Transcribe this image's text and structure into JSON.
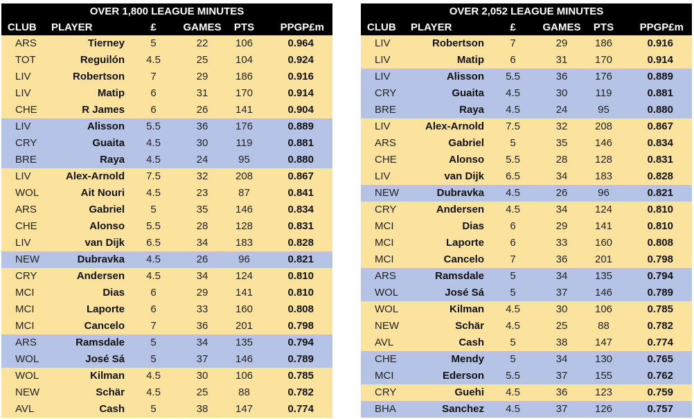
{
  "headers": [
    "CLUB",
    "PLAYER",
    "£",
    "GAMES",
    "PTS",
    "PPGP£m"
  ],
  "colors": {
    "gold_row": "#fbe29d",
    "blue_row": "#b4c3e6",
    "header_bg": "#000000"
  },
  "tables": [
    {
      "title": "OVER 1,800 LEAGUE MINUTES",
      "rows": [
        {
          "club": "ARS",
          "player": "Tierney",
          "price": "5",
          "games": "22",
          "pts": "106",
          "ppg": "0.964",
          "shade": "gold"
        },
        {
          "club": "TOT",
          "player": "Reguilón",
          "price": "4.5",
          "games": "25",
          "pts": "104",
          "ppg": "0.924",
          "shade": "gold"
        },
        {
          "club": "LIV",
          "player": "Robertson",
          "price": "7",
          "games": "29",
          "pts": "186",
          "ppg": "0.916",
          "shade": "gold"
        },
        {
          "club": "LIV",
          "player": "Matip",
          "price": "6",
          "games": "31",
          "pts": "170",
          "ppg": "0.914",
          "shade": "gold"
        },
        {
          "club": "CHE",
          "player": "R James",
          "price": "6",
          "games": "26",
          "pts": "141",
          "ppg": "0.904",
          "shade": "gold"
        },
        {
          "club": "LIV",
          "player": "Alisson",
          "price": "5.5",
          "games": "36",
          "pts": "176",
          "ppg": "0.889",
          "shade": "blue"
        },
        {
          "club": "CRY",
          "player": "Guaita",
          "price": "4.5",
          "games": "30",
          "pts": "119",
          "ppg": "0.881",
          "shade": "blue"
        },
        {
          "club": "BRE",
          "player": "Raya",
          "price": "4.5",
          "games": "24",
          "pts": "95",
          "ppg": "0.880",
          "shade": "blue"
        },
        {
          "club": "LIV",
          "player": "Alex-Arnold",
          "price": "7.5",
          "games": "32",
          "pts": "208",
          "ppg": "0.867",
          "shade": "gold"
        },
        {
          "club": "WOL",
          "player": "Ait Nouri",
          "price": "4.5",
          "games": "23",
          "pts": "87",
          "ppg": "0.841",
          "shade": "gold"
        },
        {
          "club": "ARS",
          "player": "Gabriel",
          "price": "5",
          "games": "35",
          "pts": "146",
          "ppg": "0.834",
          "shade": "gold"
        },
        {
          "club": "CHE",
          "player": "Alonso",
          "price": "5.5",
          "games": "28",
          "pts": "128",
          "ppg": "0.831",
          "shade": "gold"
        },
        {
          "club": "LIV",
          "player": "van Dijk",
          "price": "6.5",
          "games": "34",
          "pts": "183",
          "ppg": "0.828",
          "shade": "gold"
        },
        {
          "club": "NEW",
          "player": "Dubravka",
          "price": "4.5",
          "games": "26",
          "pts": "96",
          "ppg": "0.821",
          "shade": "blue"
        },
        {
          "club": "CRY",
          "player": "Andersen",
          "price": "4.5",
          "games": "34",
          "pts": "124",
          "ppg": "0.810",
          "shade": "gold"
        },
        {
          "club": "MCI",
          "player": "Dias",
          "price": "6",
          "games": "29",
          "pts": "141",
          "ppg": "0.810",
          "shade": "gold"
        },
        {
          "club": "MCI",
          "player": "Laporte",
          "price": "6",
          "games": "33",
          "pts": "160",
          "ppg": "0.808",
          "shade": "gold"
        },
        {
          "club": "MCI",
          "player": "Cancelo",
          "price": "7",
          "games": "36",
          "pts": "201",
          "ppg": "0.798",
          "shade": "gold"
        },
        {
          "club": "ARS",
          "player": "Ramsdale",
          "price": "5",
          "games": "34",
          "pts": "135",
          "ppg": "0.794",
          "shade": "blue"
        },
        {
          "club": "WOL",
          "player": "José Sá",
          "price": "5",
          "games": "37",
          "pts": "146",
          "ppg": "0.789",
          "shade": "blue"
        },
        {
          "club": "WOL",
          "player": "Kilman",
          "price": "4.5",
          "games": "30",
          "pts": "106",
          "ppg": "0.785",
          "shade": "gold"
        },
        {
          "club": "NEW",
          "player": "Schär",
          "price": "4.5",
          "games": "25",
          "pts": "88",
          "ppg": "0.782",
          "shade": "gold"
        },
        {
          "club": "AVL",
          "player": "Cash",
          "price": "5",
          "games": "38",
          "pts": "147",
          "ppg": "0.774",
          "shade": "gold"
        }
      ]
    },
    {
      "title": "OVER 2,052 LEAGUE MINUTES",
      "rows": [
        {
          "club": "LIV",
          "player": "Robertson",
          "price": "7",
          "games": "29",
          "pts": "186",
          "ppg": "0.916",
          "shade": "gold"
        },
        {
          "club": "LIV",
          "player": "Matip",
          "price": "6",
          "games": "31",
          "pts": "170",
          "ppg": "0.914",
          "shade": "gold"
        },
        {
          "club": "LIV",
          "player": "Alisson",
          "price": "5.5",
          "games": "36",
          "pts": "176",
          "ppg": "0.889",
          "shade": "blue"
        },
        {
          "club": "CRY",
          "player": "Guaita",
          "price": "4.5",
          "games": "30",
          "pts": "119",
          "ppg": "0.881",
          "shade": "blue"
        },
        {
          "club": "BRE",
          "player": "Raya",
          "price": "4.5",
          "games": "24",
          "pts": "95",
          "ppg": "0.880",
          "shade": "blue"
        },
        {
          "club": "LIV",
          "player": "Alex-Arnold",
          "price": "7.5",
          "games": "32",
          "pts": "208",
          "ppg": "0.867",
          "shade": "gold"
        },
        {
          "club": "ARS",
          "player": "Gabriel",
          "price": "5",
          "games": "35",
          "pts": "146",
          "ppg": "0.834",
          "shade": "gold"
        },
        {
          "club": "CHE",
          "player": "Alonso",
          "price": "5.5",
          "games": "28",
          "pts": "128",
          "ppg": "0.831",
          "shade": "gold"
        },
        {
          "club": "LIV",
          "player": "van Dijk",
          "price": "6.5",
          "games": "34",
          "pts": "183",
          "ppg": "0.828",
          "shade": "gold"
        },
        {
          "club": "NEW",
          "player": "Dubravka",
          "price": "4.5",
          "games": "26",
          "pts": "96",
          "ppg": "0.821",
          "shade": "blue"
        },
        {
          "club": "CRY",
          "player": "Andersen",
          "price": "4.5",
          "games": "34",
          "pts": "124",
          "ppg": "0.810",
          "shade": "gold"
        },
        {
          "club": "MCI",
          "player": "Dias",
          "price": "6",
          "games": "29",
          "pts": "141",
          "ppg": "0.810",
          "shade": "gold"
        },
        {
          "club": "MCI",
          "player": "Laporte",
          "price": "6",
          "games": "33",
          "pts": "160",
          "ppg": "0.808",
          "shade": "gold"
        },
        {
          "club": "MCI",
          "player": "Cancelo",
          "price": "7",
          "games": "36",
          "pts": "201",
          "ppg": "0.798",
          "shade": "gold"
        },
        {
          "club": "ARS",
          "player": "Ramsdale",
          "price": "5",
          "games": "34",
          "pts": "135",
          "ppg": "0.794",
          "shade": "blue"
        },
        {
          "club": "WOL",
          "player": "José Sá",
          "price": "5",
          "games": "37",
          "pts": "146",
          "ppg": "0.789",
          "shade": "blue"
        },
        {
          "club": "WOL",
          "player": "Kilman",
          "price": "4.5",
          "games": "30",
          "pts": "106",
          "ppg": "0.785",
          "shade": "gold"
        },
        {
          "club": "NEW",
          "player": "Schär",
          "price": "4.5",
          "games": "25",
          "pts": "88",
          "ppg": "0.782",
          "shade": "gold"
        },
        {
          "club": "AVL",
          "player": "Cash",
          "price": "5",
          "games": "38",
          "pts": "147",
          "ppg": "0.774",
          "shade": "gold"
        },
        {
          "club": "CHE",
          "player": "Mendy",
          "price": "5",
          "games": "34",
          "pts": "130",
          "ppg": "0.765",
          "shade": "blue"
        },
        {
          "club": "MCI",
          "player": "Ederson",
          "price": "5.5",
          "games": "37",
          "pts": "155",
          "ppg": "0.762",
          "shade": "blue"
        },
        {
          "club": "CRY",
          "player": "Guehi",
          "price": "4.5",
          "games": "36",
          "pts": "123",
          "ppg": "0.759",
          "shade": "gold"
        },
        {
          "club": "BHA",
          "player": "Sanchez",
          "price": "4.5",
          "games": "37",
          "pts": "126",
          "ppg": "0.757",
          "shade": "blue"
        }
      ]
    }
  ]
}
